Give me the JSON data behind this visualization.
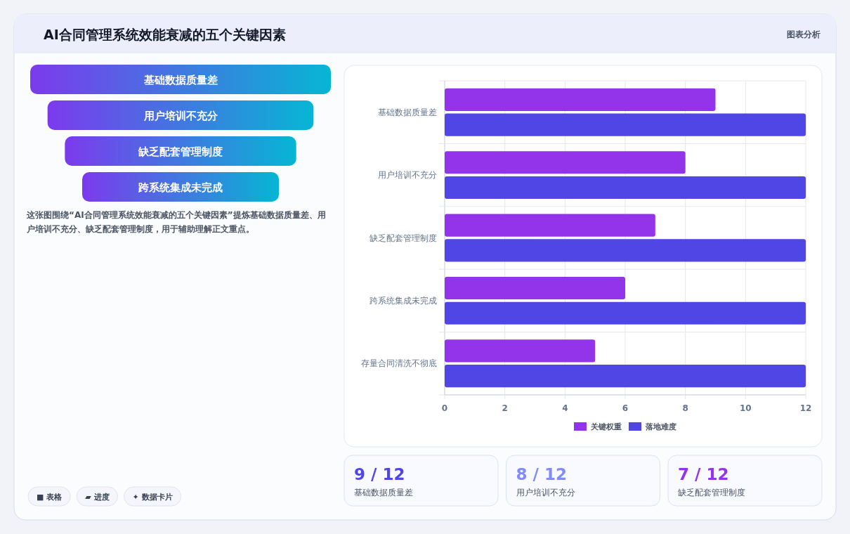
{
  "chart_data": [
    {
      "type": "other",
      "title": "AI合同管理系统效能衰减的五个关键因素",
      "annotations": [
        "图表分析"
      ]
    },
    {
      "type": "other",
      "categories": [
        "基础数据质量差",
        "用户培训不充分",
        "缺乏配套管理制度",
        "跨系统集成未完成"
      ],
      "colors": [
        "#7c3aed",
        "#06b6d4"
      ],
      "annotations": [
        "这张图围绕“AI合同管理系统效能衰减的五个关键因素”提炼基础数据质量差、用户培训不充分、缺乏配套管理制度，用于辅助理解正文重点。",
        "■ 表格",
        "▰ 进度",
        "✦ 数据卡片"
      ]
    },
    {
      "type": "bar",
      "orientation": "horizontal",
      "categories": [
        "基础数据质量差",
        "用户培训不充分",
        "缺乏配套管理制度",
        "跨系统集成未完成",
        "存量合同清洗不彻底"
      ],
      "series": [
        {
          "name": "关键权重",
          "color": "#9333ea",
          "values": [
            9,
            8,
            7,
            6,
            5
          ]
        },
        {
          "name": "落地难度",
          "color": "#4f46e5",
          "values": [
            12,
            12,
            12,
            12,
            12
          ]
        }
      ],
      "xlim": [
        0,
        12
      ],
      "xticks": [
        0,
        2,
        4,
        6,
        8,
        10,
        12
      ],
      "grid": true,
      "legend": "bottom"
    },
    {
      "type": "other",
      "title": "9 / 12",
      "subtitle": "基础数据质量差",
      "colors": [
        "#4f46e5"
      ]
    },
    {
      "type": "other",
      "title": "8 / 12",
      "subtitle": "用户培训不充分",
      "colors": [
        "#818cf8"
      ]
    },
    {
      "type": "other",
      "title": "7 / 12",
      "subtitle": "缺乏配套管理制度",
      "colors": [
        "#9333ea"
      ]
    }
  ]
}
